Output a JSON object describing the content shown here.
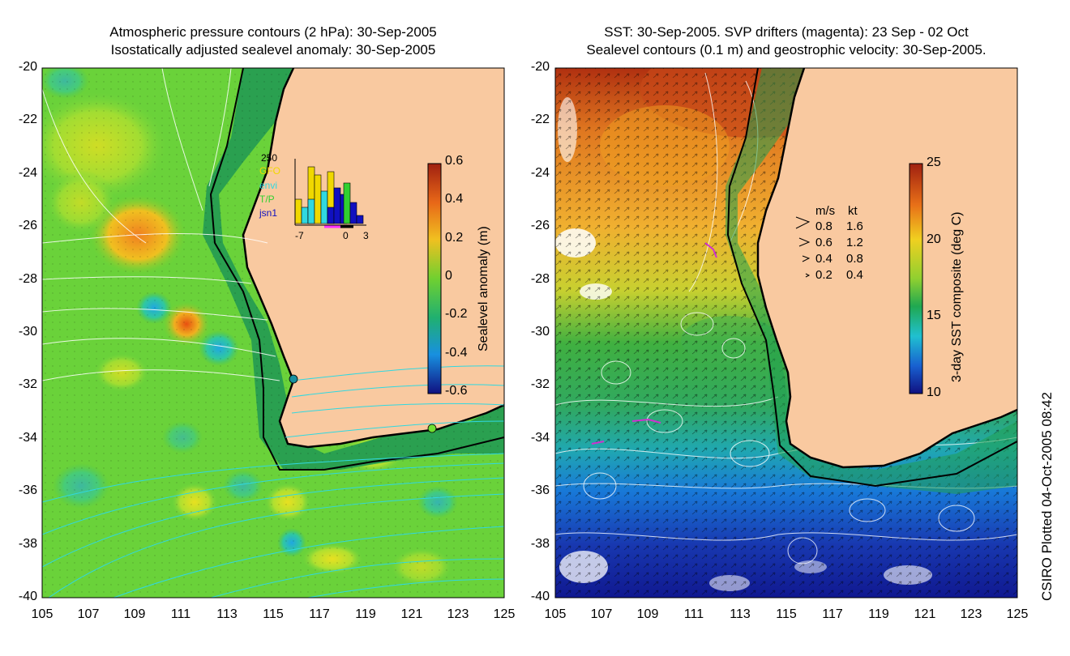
{
  "left_panel": {
    "title_line1": "Atmospheric pressure contours (2 hPa): 30-Sep-2005",
    "title_line2": "Isostatically adjusted sealevel anomaly: 30-Sep-2005",
    "y_ticks": [
      "-20",
      "-22",
      "-24",
      "-26",
      "-28",
      "-30",
      "-32",
      "-34",
      "-36",
      "-38",
      "-40"
    ],
    "x_ticks": [
      "105",
      "107",
      "109",
      "111",
      "113",
      "115",
      "117",
      "119",
      "121",
      "123",
      "125"
    ],
    "colorbar": {
      "label": "Sealevel anomaly (m)",
      "ticks": [
        "0.6",
        "0.4",
        "0.2",
        "0",
        "-0.2",
        "-0.4",
        "-0.6"
      ],
      "range": [
        -0.6,
        0.6
      ]
    },
    "satellite_legend": {
      "top_count": "250",
      "sats": [
        {
          "name": "GFO",
          "color": "#f0d800"
        },
        {
          "name": "envi",
          "color": "#30d8e0"
        },
        {
          "name": "T/P",
          "color": "#30d030"
        },
        {
          "name": "jsn1",
          "color": "#1010c0"
        }
      ],
      "axis_labels": [
        "-7",
        "0",
        "3"
      ]
    }
  },
  "right_panel": {
    "title_line1": "SST: 30-Sep-2005. SVP drifters (magenta): 23 Sep - 02 Oct",
    "title_line2": "Sealevel contours (0.1 m) and geostrophic velocity: 30-Sep-2005.",
    "y_ticks": [
      "-20",
      "-22",
      "-24",
      "-26",
      "-28",
      "-30",
      "-32",
      "-34",
      "-36",
      "-38",
      "-40"
    ],
    "x_ticks": [
      "105",
      "107",
      "109",
      "111",
      "113",
      "115",
      "117",
      "119",
      "121",
      "123",
      "125"
    ],
    "colorbar": {
      "label": "3-day SST composite (deg C)",
      "ticks": [
        "25",
        "20",
        "15",
        "10"
      ],
      "range": [
        10,
        25
      ]
    },
    "velocity_legend": {
      "header_ms": "m/s",
      "header_kt": "kt",
      "rows": [
        {
          "ms": "0.8",
          "kt": "1.6"
        },
        {
          "ms": "0.6",
          "kt": "1.2"
        },
        {
          "ms": "0.4",
          "kt": "0.8"
        },
        {
          "ms": "0.2",
          "kt": "0.4"
        }
      ]
    }
  },
  "stamp": "CSIRO Plotted 04-Oct-2005 08:42",
  "colors": {
    "land": "#f9c9a0",
    "coast": "#000000"
  }
}
